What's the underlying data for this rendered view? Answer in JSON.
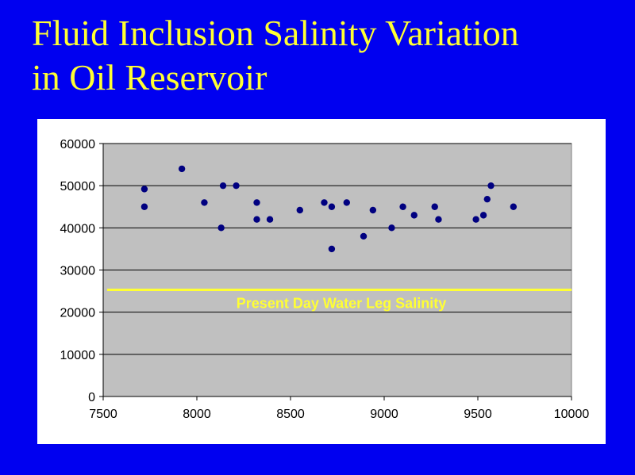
{
  "slide": {
    "title_line1": "Fluid Inclusion Salinity Variation",
    "title_line2": "in Oil Reservoir"
  },
  "colors": {
    "background": "#0000f0",
    "title": "#ffff33",
    "plot_area": "#c0c0c0",
    "points": "#000080",
    "reference_line": "#ffff33"
  },
  "chart_data": {
    "type": "scatter",
    "title": "",
    "xlabel": "",
    "ylabel": "",
    "xlim": [
      7500,
      10000
    ],
    "ylim": [
      0,
      60000
    ],
    "xticks": [
      7500,
      8000,
      8500,
      9000,
      9500,
      10000
    ],
    "yticks": [
      0,
      10000,
      20000,
      30000,
      40000,
      50000,
      60000
    ],
    "grid": "horizontal",
    "legend": "none",
    "series": [
      {
        "points": [
          [
            7720,
            49200
          ],
          [
            7720,
            45000
          ],
          [
            7920,
            54000
          ],
          [
            8040,
            46000
          ],
          [
            8130,
            40000
          ],
          [
            8140,
            50000
          ],
          [
            8210,
            50000
          ],
          [
            8320,
            46000
          ],
          [
            8320,
            42000
          ],
          [
            8390,
            42000
          ],
          [
            8550,
            44200
          ],
          [
            8680,
            46000
          ],
          [
            8720,
            45000
          ],
          [
            8720,
            35000
          ],
          [
            8800,
            46000
          ],
          [
            8890,
            38000
          ],
          [
            8940,
            44200
          ],
          [
            9040,
            40000
          ],
          [
            9100,
            45000
          ],
          [
            9160,
            43000
          ],
          [
            9270,
            45000
          ],
          [
            9290,
            42000
          ],
          [
            9490,
            42000
          ],
          [
            9530,
            43000
          ],
          [
            9550,
            46800
          ],
          [
            9570,
            50000
          ],
          [
            9690,
            45000
          ]
        ]
      }
    ],
    "reference_line": {
      "y": 25300,
      "label": "Present Day Water Leg Salinity"
    }
  }
}
